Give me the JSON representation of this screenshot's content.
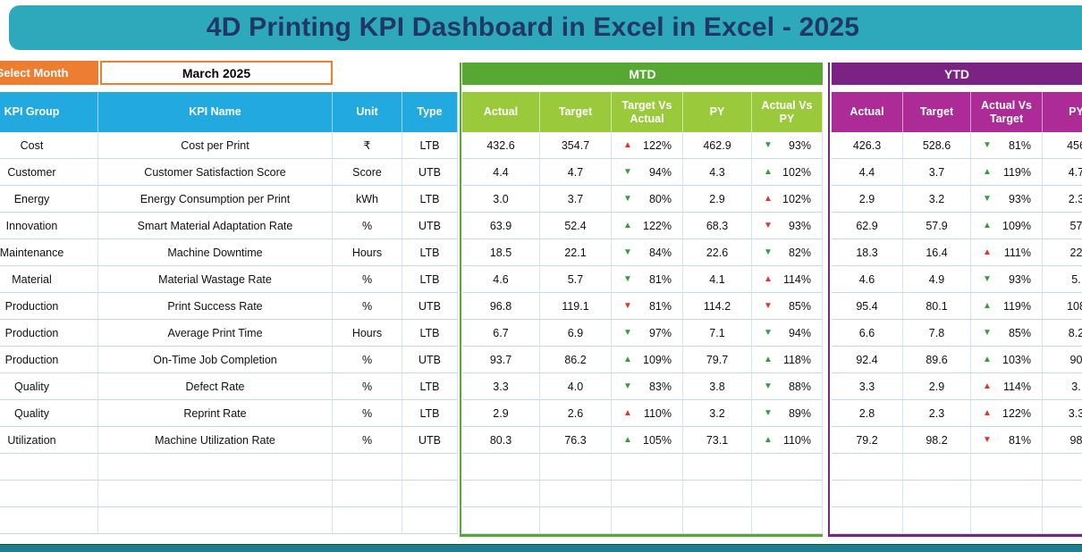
{
  "title": "4D Printing KPI Dashboard in Excel  in Excel - 2025",
  "month_selector": {
    "label": "Select Month",
    "value": "March 2025"
  },
  "sections": {
    "mtd": "MTD",
    "ytd": "YTD"
  },
  "table": {
    "left_headers": [
      "KPI Group",
      "KPI Name",
      "Unit",
      "Type"
    ],
    "mtd_headers": [
      "Actual",
      "Target",
      "Target Vs Actual",
      "PY",
      "Actual Vs PY"
    ],
    "ytd_headers": [
      "Actual",
      "Target",
      "Actual Vs Target",
      "PY"
    ],
    "empty_row_count": 3,
    "rows": [
      {
        "group": "Cost",
        "name": "Cost per Print",
        "unit": "₹",
        "type": "LTB",
        "mtd": {
          "actual": "432.6",
          "target": "354.7",
          "target_vs_actual": {
            "dir": "up",
            "color": "red",
            "pct": "122%"
          },
          "py": "462.9",
          "actual_vs_py": {
            "dir": "down",
            "color": "green",
            "pct": "93%"
          }
        },
        "ytd": {
          "actual": "426.3",
          "target": "528.6",
          "actual_vs_target": {
            "dir": "down",
            "color": "green",
            "pct": "81%"
          },
          "py": "456"
        }
      },
      {
        "group": "Customer",
        "name": "Customer Satisfaction Score",
        "unit": "Score",
        "type": "UTB",
        "mtd": {
          "actual": "4.4",
          "target": "4.7",
          "target_vs_actual": {
            "dir": "down",
            "color": "green",
            "pct": "94%"
          },
          "py": "4.3",
          "actual_vs_py": {
            "dir": "up",
            "color": "green",
            "pct": "102%"
          }
        },
        "ytd": {
          "actual": "4.4",
          "target": "3.7",
          "actual_vs_target": {
            "dir": "up",
            "color": "green",
            "pct": "119%"
          },
          "py": "4.7"
        }
      },
      {
        "group": "Energy",
        "name": "Energy Consumption per Print",
        "unit": "kWh",
        "type": "LTB",
        "mtd": {
          "actual": "3.0",
          "target": "3.7",
          "target_vs_actual": {
            "dir": "down",
            "color": "green",
            "pct": "80%"
          },
          "py": "2.9",
          "actual_vs_py": {
            "dir": "up",
            "color": "red",
            "pct": "102%"
          }
        },
        "ytd": {
          "actual": "2.9",
          "target": "3.2",
          "actual_vs_target": {
            "dir": "down",
            "color": "green",
            "pct": "93%"
          },
          "py": "2.3"
        }
      },
      {
        "group": "Innovation",
        "name": "Smart Material Adaptation Rate",
        "unit": "%",
        "type": "UTB",
        "mtd": {
          "actual": "63.9",
          "target": "52.4",
          "target_vs_actual": {
            "dir": "up",
            "color": "green",
            "pct": "122%"
          },
          "py": "68.3",
          "actual_vs_py": {
            "dir": "down",
            "color": "red",
            "pct": "93%"
          }
        },
        "ytd": {
          "actual": "62.9",
          "target": "57.9",
          "actual_vs_target": {
            "dir": "up",
            "color": "green",
            "pct": "109%"
          },
          "py": "57"
        }
      },
      {
        "group": "Maintenance",
        "name": "Machine Downtime",
        "unit": "Hours",
        "type": "LTB",
        "mtd": {
          "actual": "18.5",
          "target": "22.1",
          "target_vs_actual": {
            "dir": "down",
            "color": "green",
            "pct": "84%"
          },
          "py": "22.6",
          "actual_vs_py": {
            "dir": "down",
            "color": "green",
            "pct": "82%"
          }
        },
        "ytd": {
          "actual": "18.3",
          "target": "16.4",
          "actual_vs_target": {
            "dir": "up",
            "color": "red",
            "pct": "111%"
          },
          "py": "22"
        }
      },
      {
        "group": "Material",
        "name": "Material Wastage Rate",
        "unit": "%",
        "type": "LTB",
        "mtd": {
          "actual": "4.6",
          "target": "5.7",
          "target_vs_actual": {
            "dir": "down",
            "color": "green",
            "pct": "81%"
          },
          "py": "4.1",
          "actual_vs_py": {
            "dir": "up",
            "color": "red",
            "pct": "114%"
          }
        },
        "ytd": {
          "actual": "4.6",
          "target": "4.9",
          "actual_vs_target": {
            "dir": "down",
            "color": "green",
            "pct": "93%"
          },
          "py": "5."
        }
      },
      {
        "group": "Production",
        "name": "Print Success Rate",
        "unit": "%",
        "type": "UTB",
        "mtd": {
          "actual": "96.8",
          "target": "119.1",
          "target_vs_actual": {
            "dir": "down",
            "color": "red",
            "pct": "81%"
          },
          "py": "114.2",
          "actual_vs_py": {
            "dir": "down",
            "color": "red",
            "pct": "85%"
          }
        },
        "ytd": {
          "actual": "95.4",
          "target": "80.1",
          "actual_vs_target": {
            "dir": "up",
            "color": "green",
            "pct": "119%"
          },
          "py": "108"
        }
      },
      {
        "group": "Production",
        "name": "Average Print Time",
        "unit": "Hours",
        "type": "LTB",
        "mtd": {
          "actual": "6.7",
          "target": "6.9",
          "target_vs_actual": {
            "dir": "down",
            "color": "green",
            "pct": "97%"
          },
          "py": "7.1",
          "actual_vs_py": {
            "dir": "down",
            "color": "green",
            "pct": "94%"
          }
        },
        "ytd": {
          "actual": "6.6",
          "target": "7.8",
          "actual_vs_target": {
            "dir": "down",
            "color": "green",
            "pct": "85%"
          },
          "py": "8.2"
        }
      },
      {
        "group": "Production",
        "name": "On-Time Job Completion",
        "unit": "%",
        "type": "UTB",
        "mtd": {
          "actual": "93.7",
          "target": "86.2",
          "target_vs_actual": {
            "dir": "up",
            "color": "green",
            "pct": "109%"
          },
          "py": "79.7",
          "actual_vs_py": {
            "dir": "up",
            "color": "green",
            "pct": "118%"
          }
        },
        "ytd": {
          "actual": "92.4",
          "target": "89.6",
          "actual_vs_target": {
            "dir": "up",
            "color": "green",
            "pct": "103%"
          },
          "py": "90"
        }
      },
      {
        "group": "Quality",
        "name": "Defect Rate",
        "unit": "%",
        "type": "LTB",
        "mtd": {
          "actual": "3.3",
          "target": "4.0",
          "target_vs_actual": {
            "dir": "down",
            "color": "green",
            "pct": "83%"
          },
          "py": "3.8",
          "actual_vs_py": {
            "dir": "down",
            "color": "green",
            "pct": "88%"
          }
        },
        "ytd": {
          "actual": "3.3",
          "target": "2.9",
          "actual_vs_target": {
            "dir": "up",
            "color": "red",
            "pct": "114%"
          },
          "py": "3."
        }
      },
      {
        "group": "Quality",
        "name": "Reprint Rate",
        "unit": "%",
        "type": "LTB",
        "mtd": {
          "actual": "2.9",
          "target": "2.6",
          "target_vs_actual": {
            "dir": "up",
            "color": "red",
            "pct": "110%"
          },
          "py": "3.2",
          "actual_vs_py": {
            "dir": "down",
            "color": "green",
            "pct": "89%"
          }
        },
        "ytd": {
          "actual": "2.8",
          "target": "2.3",
          "actual_vs_target": {
            "dir": "up",
            "color": "red",
            "pct": "122%"
          },
          "py": "3.3"
        }
      },
      {
        "group": "Utilization",
        "name": "Machine Utilization Rate",
        "unit": "%",
        "type": "UTB",
        "mtd": {
          "actual": "80.3",
          "target": "76.3",
          "target_vs_actual": {
            "dir": "up",
            "color": "green",
            "pct": "105%"
          },
          "py": "73.1",
          "actual_vs_py": {
            "dir": "up",
            "color": "green",
            "pct": "110%"
          }
        },
        "ytd": {
          "actual": "79.2",
          "target": "98.2",
          "actual_vs_target": {
            "dir": "down",
            "color": "red",
            "pct": "81%"
          },
          "py": "98"
        }
      }
    ]
  },
  "colors": {
    "banner_teal": "#2EA9BC",
    "title_navy": "#1F3864",
    "orange": "#ED7D31",
    "header_blue": "#22A9E0",
    "mtd_green_dark": "#57A733",
    "mtd_green_light": "#9ACA3C",
    "ytd_purple_dark": "#7B2382",
    "ytd_magenta": "#AC2B96",
    "arrow_green": "#2F9E41",
    "arrow_red": "#E1352A",
    "footer_teal": "#1D7F8F"
  }
}
